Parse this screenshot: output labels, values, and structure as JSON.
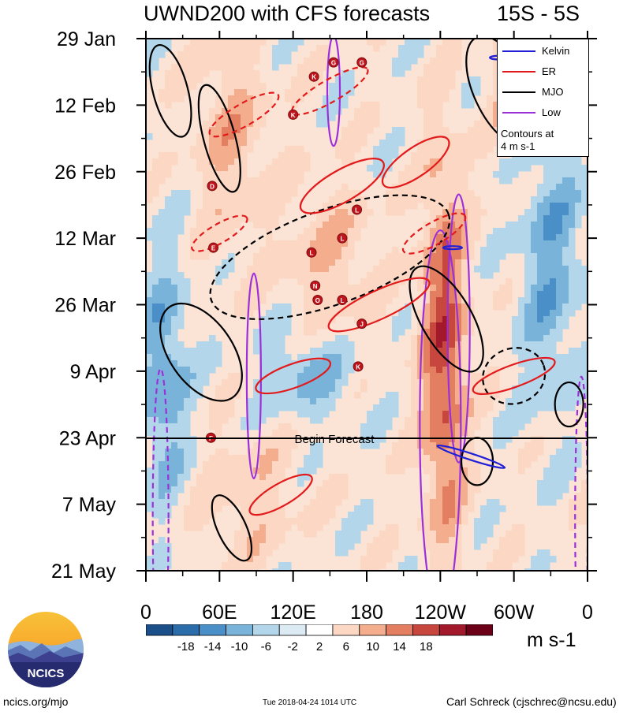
{
  "title": {
    "main": "UWND200 with CFS forecasts",
    "latitude_band": "15S - 5S"
  },
  "chart_data": {
    "type": "heatmap",
    "title": "UWND200 with CFS forecasts",
    "subtitle": "15S - 5S",
    "xlabel": "longitude",
    "ylabel": "date",
    "x_ticks": [
      "0",
      "60E",
      "120E",
      "180",
      "120W",
      "60W",
      "0"
    ],
    "y_ticks": [
      "29 Jan",
      "12 Feb",
      "26 Feb",
      "12 Mar",
      "26 Mar",
      "9 Apr",
      "23 Apr",
      "7 May",
      "21 May"
    ],
    "forecast_line": {
      "date": "23 Apr",
      "label": "Begin Forecast"
    },
    "colorbar": {
      "ticks": [
        "-18",
        "-14",
        "-10",
        "-6",
        "-2",
        "2",
        "6",
        "10",
        "14",
        "18"
      ],
      "unit": "m s-1",
      "colors": [
        "#1a4f8a",
        "#2b6cab",
        "#4a8fc7",
        "#79b3da",
        "#b3d6ea",
        "#dbeaf3",
        "#ffffff",
        "#fbd7c4",
        "#f4ae8e",
        "#e47e60",
        "#c7473f",
        "#a1192b",
        "#6b0018"
      ]
    },
    "legend": {
      "entries": [
        {
          "label": "Kelvin",
          "color": "#1f1fd6"
        },
        {
          "label": "ER",
          "color": "#e31a1c"
        },
        {
          "label": "MJO",
          "color": "#000000"
        },
        {
          "label": "Low",
          "color": "#9b30d9"
        }
      ],
      "note_line1": "Contours at",
      "note_line2": "4 m s-1"
    },
    "cyclone_symbols": [
      {
        "lon": 137,
        "date": "6 Feb",
        "letter": "K"
      },
      {
        "lon": 153,
        "date": "3 Feb",
        "letter": "G"
      },
      {
        "lon": 176,
        "date": "3 Feb",
        "letter": "G"
      },
      {
        "lon": 120,
        "date": "14 Feb",
        "letter": "K"
      },
      {
        "lon": 54,
        "date": "1 Mar",
        "letter": "D"
      },
      {
        "lon": 172,
        "date": "6 Mar",
        "letter": "L"
      },
      {
        "lon": 160,
        "date": "12 Mar",
        "letter": "L"
      },
      {
        "lon": 55,
        "date": "14 Mar",
        "letter": "E"
      },
      {
        "lon": 135,
        "date": "15 Mar",
        "letter": "L"
      },
      {
        "lon": 138,
        "date": "22 Mar",
        "letter": "N"
      },
      {
        "lon": 140,
        "date": "25 Mar",
        "letter": "O"
      },
      {
        "lon": 160,
        "date": "25 Mar",
        "letter": "L"
      },
      {
        "lon": 176,
        "date": "30 Mar",
        "letter": "J"
      },
      {
        "lon": 173,
        "date": "8 Apr",
        "letter": "K"
      },
      {
        "lon": 53,
        "date": "23 Apr",
        "letter": "F"
      }
    ]
  },
  "logo": {
    "text": "NCICS"
  },
  "footer": {
    "left": "ncics.org/mjo",
    "middle": "Tue 2018-04-24 1014 UTC",
    "right": "Carl Schreck (cjschrec@ncsu.edu)"
  }
}
